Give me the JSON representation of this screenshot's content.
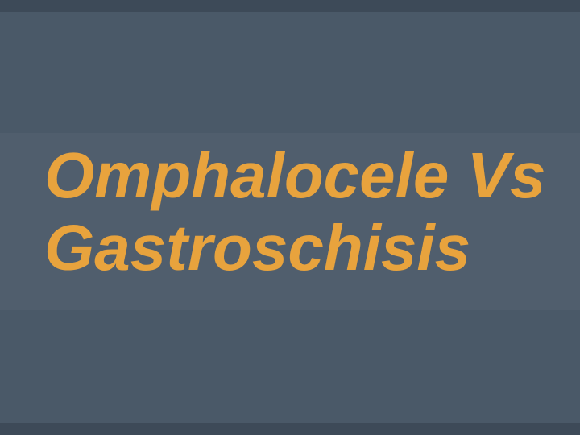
{
  "slide": {
    "title_line1": "Omphalocele Vs",
    "title_line2": "Gastroschisis",
    "title_color": "#e8a33d",
    "title_fontsize": 80,
    "background_stripes": {
      "top_edge": "#3d4a58",
      "band1": "#4a5968",
      "band2": "#505e6d",
      "band3": "#4a5968",
      "bottom_edge": "#3d4a58"
    }
  }
}
